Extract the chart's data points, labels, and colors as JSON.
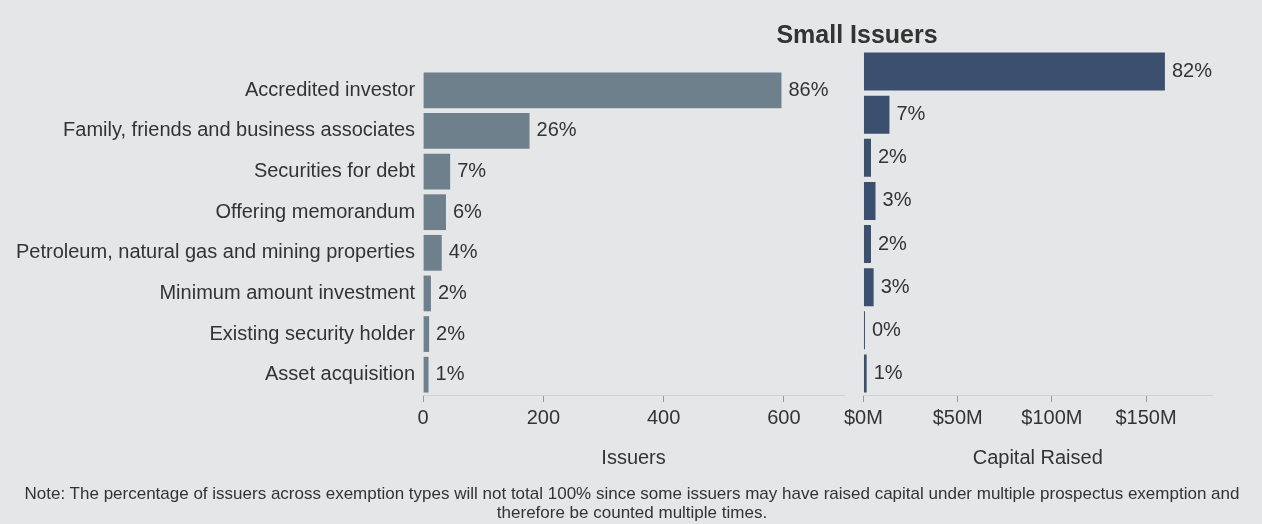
{
  "chart_data": [
    {
      "type": "bar",
      "orientation": "horizontal",
      "categories": [
        "Accredited investor",
        "Family, friends and business associates",
        "Securities for debt",
        "Offering memorandum",
        "Petroleum, natural gas and mining properties",
        "Minimum amount investment",
        "Existing security holder",
        "Asset acquisition"
      ],
      "series": [
        {
          "color": "#6e808c",
          "values": [
            596,
            177,
            45,
            38,
            31,
            13,
            10,
            9
          ]
        }
      ],
      "xlabel": "Issuers",
      "xlim": [
        0,
        700
      ],
      "xticks": [
        0,
        200,
        400,
        600
      ],
      "grid": false,
      "legend": false,
      "annotations": [
        {
          "text": "86%",
          "x": 596,
          "y": "Accredited investor"
        },
        {
          "text": "26%",
          "x": 177,
          "y": "Family, friends and business associates"
        },
        {
          "text": "7%",
          "x": 45,
          "y": "Securities for debt"
        },
        {
          "text": "6%",
          "x": 38,
          "y": "Offering memorandum"
        },
        {
          "text": "4%",
          "x": 31,
          "y": "Petroleum, natural gas and mining properties"
        },
        {
          "text": "2%",
          "x": 13,
          "y": "Minimum amount investment"
        },
        {
          "text": "2%",
          "x": 10,
          "y": "Existing security holder"
        },
        {
          "text": "1%",
          "x": 9,
          "y": "Asset acquisition"
        },
        "Note: The percentage of issuers across exemption types will not total 100% since some issuers may have raised capital under multiple prospectus exemption and therefore be counted multiple times."
      ]
    },
    {
      "type": "bar",
      "orientation": "horizontal",
      "title": "Small Issuers",
      "categories": [
        "Accredited investor",
        "Family, friends and business associates",
        "Securities for debt",
        "Offering memorandum",
        "Petroleum, natural gas and mining properties",
        "Minimum amount investment",
        "Existing security holder",
        "Asset acquisition"
      ],
      "series": [
        {
          "color": "#3a506e",
          "values": [
            160,
            13.8,
            4,
            6.4,
            4,
            5.4,
            0.8,
            1.7
          ]
        }
      ],
      "xlabel": "Capital Raised",
      "xlim": [
        0,
        185
      ],
      "xticks": [
        {
          "value": 0,
          "label": "$0M"
        },
        {
          "value": 50,
          "label": "$50M"
        },
        {
          "value": 100,
          "label": "$100M"
        },
        {
          "value": 150,
          "label": "$150M"
        }
      ],
      "tick_labels": "x",
      "grid": false,
      "legend": false,
      "annotations": [
        {
          "text": "82%",
          "x": 160,
          "y": "Accredited investor"
        },
        {
          "text": "7%",
          "x": 13.8,
          "y": "Family, friends and business associates"
        },
        {
          "text": "2%",
          "x": 4,
          "y": "Securities for debt"
        },
        {
          "text": "3%",
          "x": 6.4,
          "y": "Offering memorandum"
        },
        {
          "text": "2%",
          "x": 4,
          "y": "Petroleum, natural gas and mining properties"
        },
        {
          "text": "3%",
          "x": 5.4,
          "y": "Minimum amount investment"
        },
        {
          "text": "0%",
          "x": 0.8,
          "y": "Existing security holder"
        },
        {
          "text": "1%",
          "x": 1.7,
          "y": "Asset acquisition"
        }
      ]
    }
  ]
}
